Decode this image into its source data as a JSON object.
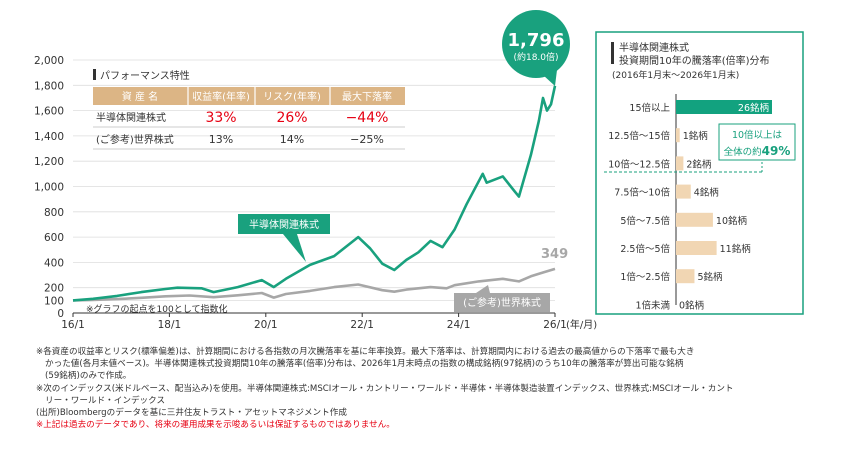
{
  "colors": {
    "semi": "#19a17e",
    "world": "#a7a7a7",
    "accent_red": "#e60012",
    "bar_top": "#12a27f",
    "bar_other": "#f1d6b3",
    "table_header": "#dcb585"
  },
  "chart_data": [
    {
      "type": "line",
      "x_ticks": [
        "16/1",
        "18/1",
        "20/1",
        "22/1",
        "24/1",
        "26/1"
      ],
      "x_unit": "(年/月)",
      "y_ticks": [
        "2,000",
        "1,800",
        "1,600",
        "1,400",
        "1,200",
        "1,000",
        "800",
        "600",
        "400",
        "200",
        "100",
        "0"
      ],
      "ylim": [
        0,
        2000
      ],
      "xlim": [
        "2016-01",
        "2026-01"
      ],
      "series": [
        {
          "name": "半導体関連株式",
          "color": "#19a17e",
          "points": [
            [
              "2016-01",
              100
            ],
            [
              "2016-06",
              112
            ],
            [
              "2016-12",
              135
            ],
            [
              "2017-06",
              165
            ],
            [
              "2017-12",
              190
            ],
            [
              "2018-03",
              200
            ],
            [
              "2018-09",
              195
            ],
            [
              "2018-12",
              165
            ],
            [
              "2019-06",
              205
            ],
            [
              "2019-12",
              260
            ],
            [
              "2020-03",
              205
            ],
            [
              "2020-06",
              270
            ],
            [
              "2020-12",
              380
            ],
            [
              "2021-06",
              450
            ],
            [
              "2021-12",
              600
            ],
            [
              "2022-03",
              510
            ],
            [
              "2022-06",
              390
            ],
            [
              "2022-09",
              340
            ],
            [
              "2022-12",
              420
            ],
            [
              "2023-03",
              480
            ],
            [
              "2023-06",
              570
            ],
            [
              "2023-09",
              520
            ],
            [
              "2023-12",
              660
            ],
            [
              "2024-03",
              860
            ],
            [
              "2024-07",
              1100
            ],
            [
              "2024-08",
              1030
            ],
            [
              "2024-12",
              1080
            ],
            [
              "2025-03",
              960
            ],
            [
              "2025-04",
              920
            ],
            [
              "2025-07",
              1250
            ],
            [
              "2025-09",
              1520
            ],
            [
              "2025-10",
              1700
            ],
            [
              "2025-11",
              1600
            ],
            [
              "2025-12",
              1650
            ],
            [
              "2026-01",
              1796
            ]
          ]
        },
        {
          "name": "(ご参考)世界株式",
          "color": "#a7a7a7",
          "points": [
            [
              "2016-01",
              100
            ],
            [
              "2016-06",
              103
            ],
            [
              "2016-12",
              110
            ],
            [
              "2017-06",
              120
            ],
            [
              "2017-12",
              132
            ],
            [
              "2018-06",
              138
            ],
            [
              "2018-12",
              125
            ],
            [
              "2019-06",
              140
            ],
            [
              "2019-12",
              158
            ],
            [
              "2020-03",
              122
            ],
            [
              "2020-06",
              150
            ],
            [
              "2020-12",
              175
            ],
            [
              "2021-06",
              205
            ],
            [
              "2021-12",
              225
            ],
            [
              "2022-06",
              180
            ],
            [
              "2022-09",
              168
            ],
            [
              "2022-12",
              185
            ],
            [
              "2023-06",
              205
            ],
            [
              "2023-10",
              195
            ],
            [
              "2023-12",
              220
            ],
            [
              "2024-06",
              250
            ],
            [
              "2024-12",
              270
            ],
            [
              "2025-04",
              250
            ],
            [
              "2025-07",
              290
            ],
            [
              "2025-10",
              320
            ],
            [
              "2026-01",
              349
            ]
          ]
        }
      ],
      "annotations": {
        "semi_label": "半導体関連株式",
        "world_label": "(ご参考)世界株式",
        "final_value": "1,796",
        "final_multiple": "(約18.0倍)",
        "world_final": "349",
        "base_note": "※グラフの起点を100として指数化"
      },
      "performance_table": {
        "heading": "パフォーマンス特性",
        "columns": [
          "資 産 名",
          "収益率(年率)",
          "リスク(年率)",
          "最大下落率"
        ],
        "rows": [
          {
            "name": "半導体関連株式",
            "ret": "33%",
            "risk": "26%",
            "dd": "−44%"
          },
          {
            "name": "(ご参考)世界株式",
            "ret": "13%",
            "risk": "14%",
            "dd": "−25%"
          }
        ]
      }
    },
    {
      "type": "bar",
      "orientation": "horizontal",
      "title_line1": "半導体関連株式",
      "title_line2": "投資期間10年の騰落率(倍率)分布",
      "subtitle": "(2016年1月末〜2026年1月末)",
      "categories": [
        "15倍以上",
        "12.5倍〜15倍",
        "10倍〜12.5倍",
        "7.5倍〜10倍",
        "5倍〜7.5倍",
        "2.5倍〜5倍",
        "1倍〜2.5倍",
        "1倍未満"
      ],
      "values": [
        26,
        1,
        2,
        4,
        10,
        11,
        5,
        0
      ],
      "value_labels": [
        "26銘柄",
        "1銘柄",
        "2銘柄",
        "4銘柄",
        "10銘柄",
        "11銘柄",
        "5銘柄",
        "0銘柄"
      ],
      "xlim": [
        0,
        26
      ],
      "callout_line1": "10倍以上は",
      "callout_line2": "全体の約",
      "callout_pct": "49%"
    }
  ],
  "notes": {
    "n1a": "※各資産の収益率とリスク(標準偏差)は、計算期間における各指数の月次騰落率を基に年率換算。最大下落率は、計算期間内における過去の最高値からの下落率で最も大き",
    "n1b": "かった値(各月末値ベース)。半導体関連株式投資期間10年の騰落率(倍率)分布は、2026年1月末時点の指数の構成銘柄(97銘柄)のうち10年の騰落率が算出可能な銘柄",
    "n1c": "(59銘柄)のみで作成。",
    "n2a": "※次のインデックス(米ドルベース、配当込み)を使用。半導体関連株式:MSCIオール・カントリー・ワールド・半導体・半導体製造装置インデックス、世界株式:MSCIオール・カント",
    "n2b": "リー・ワールド・インデックス",
    "n3": "(出所)Bloombergのデータを基に三井住友トラスト・アセットマネジメント作成",
    "n4": "※上記は過去のデータであり、将来の運用成果を示唆あるいは保証するものではありません。"
  }
}
